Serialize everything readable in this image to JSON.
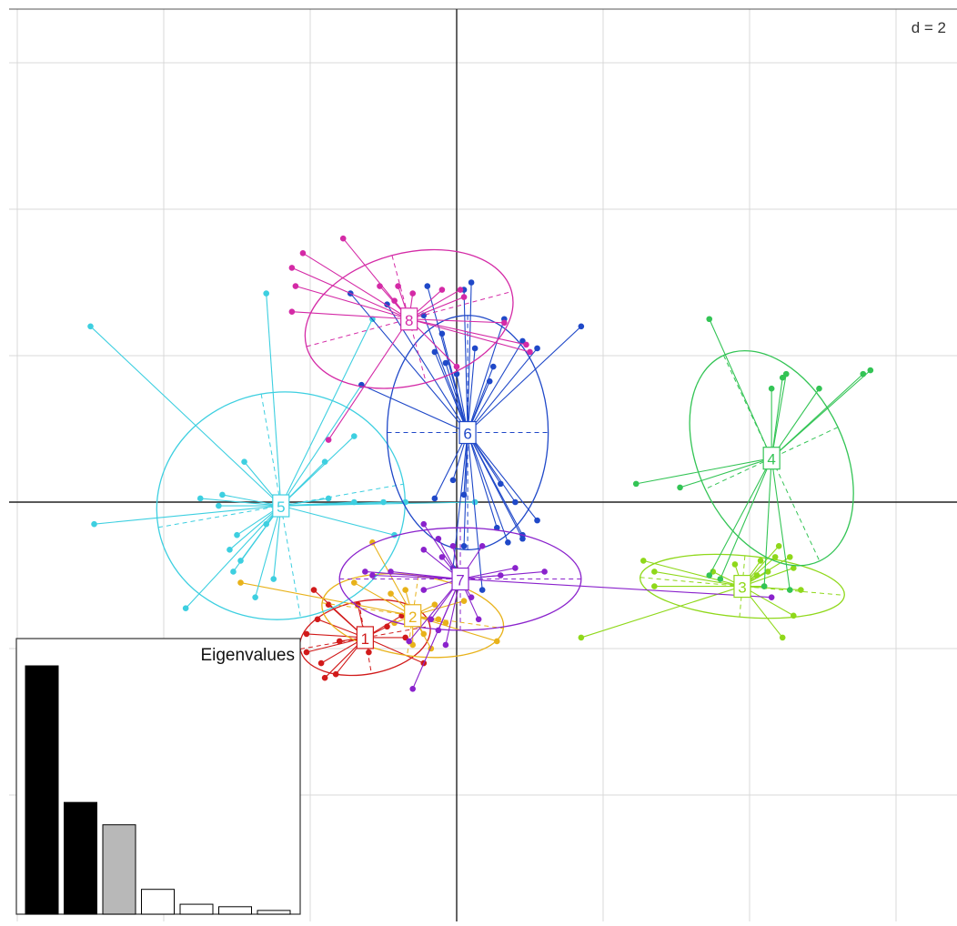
{
  "chart_data": {
    "type": "scatter",
    "scale_label": "d = 2",
    "grid": true,
    "groups": [
      {
        "label": "1",
        "color": "#d11a1a",
        "center": [
          -1.25,
          -1.85
        ],
        "ellipse": {
          "rx": 0.9,
          "ry": 0.5,
          "angle": 10
        },
        "points": [
          [
            -1.95,
            -1.2
          ],
          [
            -1.75,
            -1.4
          ],
          [
            -1.9,
            -1.6
          ],
          [
            -2.05,
            -1.8
          ],
          [
            -2.05,
            -2.05
          ],
          [
            -1.85,
            -2.2
          ],
          [
            -1.65,
            -2.35
          ],
          [
            -1.8,
            -2.4
          ],
          [
            -1.6,
            -1.9
          ],
          [
            -1.2,
            -2.05
          ],
          [
            -0.95,
            -1.7
          ],
          [
            -0.7,
            -1.85
          ],
          [
            -0.45,
            -2.2
          ],
          [
            -0.75,
            -1.55
          ],
          [
            -1.35,
            -1.4
          ]
        ]
      },
      {
        "label": "2",
        "color": "#e8b21a",
        "center": [
          -0.6,
          -1.55
        ],
        "ellipse": {
          "rx": 1.25,
          "ry": 0.55,
          "angle": -8
        },
        "points": [
          [
            -1.15,
            -0.55
          ],
          [
            -1.4,
            -1.1
          ],
          [
            -0.9,
            -1.25
          ],
          [
            -0.7,
            -1.2
          ],
          [
            -0.3,
            -1.4
          ],
          [
            -0.15,
            -1.65
          ],
          [
            -0.45,
            -1.8
          ],
          [
            -0.35,
            -2.0
          ],
          [
            -0.6,
            -1.95
          ],
          [
            0.55,
            -1.9
          ],
          [
            0.1,
            -1.35
          ],
          [
            -2.95,
            -1.1
          ],
          [
            -0.85,
            -1.65
          ],
          [
            -0.25,
            -1.6
          ]
        ]
      },
      {
        "label": "3",
        "color": "#8fd81a",
        "center": [
          3.9,
          -1.15
        ],
        "ellipse": {
          "rx": 1.4,
          "ry": 0.42,
          "angle": -5
        },
        "points": [
          [
            2.55,
            -0.8
          ],
          [
            2.7,
            -0.95
          ],
          [
            2.7,
            -1.15
          ],
          [
            3.5,
            -0.95
          ],
          [
            3.8,
            -0.85
          ],
          [
            4.15,
            -0.8
          ],
          [
            4.35,
            -0.75
          ],
          [
            4.4,
            -0.6
          ],
          [
            4.25,
            -0.95
          ],
          [
            4.6,
            -0.9
          ],
          [
            4.55,
            -0.75
          ],
          [
            4.7,
            -1.2
          ],
          [
            4.6,
            -1.55
          ],
          [
            4.45,
            -1.85
          ],
          [
            4.2,
            -1.15
          ],
          [
            1.7,
            -1.85
          ],
          [
            4.1,
            -1.0
          ]
        ]
      },
      {
        "label": "4",
        "color": "#33c455",
        "center": [
          4.3,
          0.6
        ],
        "ellipse": {
          "rx": 1.55,
          "ry": 1.0,
          "angle": -65
        },
        "points": [
          [
            3.45,
            2.5
          ],
          [
            4.45,
            1.7
          ],
          [
            4.3,
            1.55
          ],
          [
            4.5,
            1.75
          ],
          [
            4.95,
            1.55
          ],
          [
            5.55,
            1.75
          ],
          [
            5.65,
            1.8
          ],
          [
            2.45,
            0.25
          ],
          [
            3.05,
            0.2
          ],
          [
            3.45,
            -1.0
          ],
          [
            4.2,
            -1.15
          ],
          [
            4.55,
            -1.2
          ],
          [
            3.6,
            -1.05
          ]
        ]
      },
      {
        "label": "5",
        "color": "#3dcfe0",
        "center": [
          -2.4,
          -0.05
        ],
        "ellipse": {
          "rx": 1.7,
          "ry": 1.55,
          "angle": 10
        },
        "points": [
          [
            -5.0,
            2.4
          ],
          [
            -2.6,
            2.85
          ],
          [
            -1.15,
            2.5
          ],
          [
            -1.3,
            1.6
          ],
          [
            -1.8,
            0.55
          ],
          [
            -1.4,
            0.9
          ],
          [
            -2.9,
            0.55
          ],
          [
            -3.2,
            0.1
          ],
          [
            -3.5,
            0.05
          ],
          [
            -4.95,
            -0.3
          ],
          [
            -3.25,
            -0.05
          ],
          [
            -2.6,
            -0.3
          ],
          [
            -1.75,
            0.05
          ],
          [
            -1.4,
            0.0
          ],
          [
            -1.0,
            0.0
          ],
          [
            -0.7,
            0.0
          ],
          [
            -3.0,
            -0.45
          ],
          [
            -3.1,
            -0.65
          ],
          [
            -3.05,
            -0.95
          ],
          [
            -2.75,
            -1.3
          ],
          [
            -3.7,
            -1.45
          ],
          [
            -2.5,
            -1.05
          ],
          [
            -2.95,
            -0.8
          ],
          [
            -0.85,
            -0.45
          ],
          [
            0.25,
            0.0
          ]
        ]
      },
      {
        "label": "6",
        "color": "#1f48c8",
        "center": [
          0.15,
          0.95
        ],
        "ellipse": {
          "rx": 1.1,
          "ry": 1.6,
          "angle": 0
        },
        "points": [
          [
            -1.45,
            2.85
          ],
          [
            -0.95,
            2.7
          ],
          [
            -0.4,
            2.95
          ],
          [
            0.1,
            2.9
          ],
          [
            0.2,
            3.0
          ],
          [
            0.65,
            2.5
          ],
          [
            0.9,
            2.2
          ],
          [
            1.1,
            2.1
          ],
          [
            1.7,
            2.4
          ],
          [
            -0.45,
            2.55
          ],
          [
            -0.3,
            2.05
          ],
          [
            -0.15,
            1.9
          ],
          [
            0.0,
            1.75
          ],
          [
            -0.2,
            2.3
          ],
          [
            0.25,
            2.1
          ],
          [
            0.5,
            1.85
          ],
          [
            0.45,
            1.65
          ],
          [
            -1.3,
            1.6
          ],
          [
            -0.05,
            0.3
          ],
          [
            0.1,
            0.1
          ],
          [
            0.6,
            0.25
          ],
          [
            0.8,
            0.0
          ],
          [
            1.1,
            -0.25
          ],
          [
            0.9,
            -0.5
          ],
          [
            0.7,
            -0.55
          ],
          [
            0.55,
            -0.35
          ],
          [
            0.1,
            -0.6
          ],
          [
            -0.05,
            -0.9
          ],
          [
            0.35,
            -1.2
          ],
          [
            -0.3,
            0.05
          ],
          [
            0.9,
            -0.45
          ]
        ]
      },
      {
        "label": "7",
        "color": "#8a22cc",
        "center": [
          0.05,
          -1.05
        ],
        "ellipse": {
          "rx": 1.65,
          "ry": 0.7,
          "angle": 0
        },
        "points": [
          [
            -0.45,
            -0.3
          ],
          [
            -0.25,
            -0.5
          ],
          [
            -0.05,
            -0.6
          ],
          [
            -0.2,
            -0.75
          ],
          [
            -0.45,
            -0.65
          ],
          [
            -0.9,
            -0.95
          ],
          [
            -1.15,
            -1.0
          ],
          [
            -1.25,
            -0.95
          ],
          [
            -0.45,
            -1.2
          ],
          [
            -0.35,
            -1.6
          ],
          [
            -0.25,
            -1.75
          ],
          [
            -0.15,
            -1.95
          ],
          [
            -0.65,
            -1.9
          ],
          [
            -0.6,
            -2.55
          ],
          [
            0.2,
            -1.3
          ],
          [
            0.3,
            -1.6
          ],
          [
            0.8,
            -0.9
          ],
          [
            1.2,
            -0.95
          ],
          [
            0.6,
            -1.0
          ],
          [
            0.35,
            -0.6
          ],
          [
            4.3,
            -1.3
          ]
        ]
      },
      {
        "label": "8",
        "color": "#d42aa6",
        "center": [
          -0.65,
          2.5
        ],
        "ellipse": {
          "rx": 1.45,
          "ry": 0.9,
          "angle": 15
        },
        "points": [
          [
            -2.1,
            3.4
          ],
          [
            -2.25,
            3.2
          ],
          [
            -2.2,
            2.95
          ],
          [
            -1.55,
            3.6
          ],
          [
            -2.25,
            2.6
          ],
          [
            -1.05,
            2.95
          ],
          [
            -0.8,
            2.95
          ],
          [
            -0.2,
            2.9
          ],
          [
            0.05,
            2.9
          ],
          [
            0.65,
            2.45
          ],
          [
            0.95,
            2.15
          ],
          [
            1.0,
            2.05
          ],
          [
            0.0,
            1.85
          ],
          [
            -0.6,
            2.85
          ],
          [
            -0.85,
            2.75
          ],
          [
            -1.75,
            0.85
          ],
          [
            0.1,
            2.8
          ]
        ]
      }
    ],
    "eigenvalues": {
      "title": "Eigenvalues",
      "values": [
        1.0,
        0.45,
        0.36,
        0.1,
        0.04,
        0.03,
        0.015
      ],
      "axes_shown": 2
    }
  }
}
